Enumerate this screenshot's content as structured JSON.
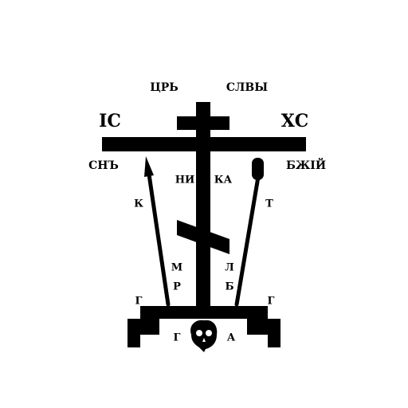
{
  "colors": {
    "ink": "#000000",
    "background": "#ffffff"
  },
  "inscriptions": {
    "top_left": "ЦРЬ",
    "top_right": "СЛВЫ",
    "bar_left": "ІС",
    "bar_right": "ХС",
    "under_left": "СНЪ",
    "under_right": "БЖІЙ",
    "center_left": "НИ",
    "center_right": "КА",
    "spear_left": "К",
    "sponge_right": "Т",
    "mid_left": "М",
    "mid_right": "Л",
    "low_left": "Р",
    "low_right": "Б",
    "base_left_outer": "Г",
    "base_right_outer": "Г",
    "base_left_inner": "Г",
    "base_right_inner": "А"
  },
  "icons": {
    "skull": "skull-icon",
    "spear": "spear-icon",
    "sponge": "sponge-reed-icon"
  }
}
